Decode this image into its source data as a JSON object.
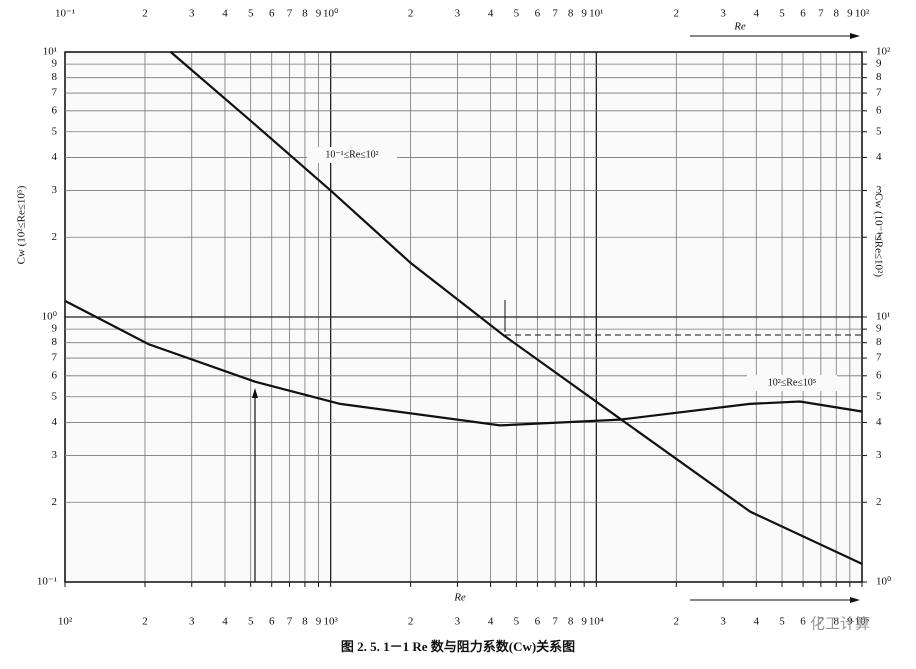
{
  "chart_data": {
    "type": "line",
    "log_x": true,
    "log_y": true,
    "grid": true,
    "xlabel": "Re",
    "x2label": "Re",
    "ylabel": "Cw (10²≤Re≤10⁵)",
    "y2label": "Cw (10⁻¹≤Re≤10²)",
    "caption": "图 2. 5. 1－1   Re 数与阻力系数(Cw)关系图",
    "watermark": "化工计算",
    "xlim": [
      0.1,
      100
    ],
    "xticks": [
      {
        "value": 0.1,
        "label": "10⁻¹"
      },
      {
        "value": 0.2,
        "label": "2"
      },
      {
        "value": 0.3,
        "label": "3"
      },
      {
        "value": 0.4,
        "label": "4"
      },
      {
        "value": 0.5,
        "label": "5"
      },
      {
        "value": 0.6,
        "label": "6"
      },
      {
        "value": 0.7,
        "label": "7"
      },
      {
        "value": 0.8,
        "label": "8"
      },
      {
        "value": 0.9,
        "label": "9"
      },
      {
        "value": 1,
        "label": "10⁰"
      },
      2,
      3,
      4,
      5,
      6,
      7,
      8,
      9,
      {
        "value": 10,
        "label": "10¹"
      },
      {
        "value": 20,
        "label": "2"
      },
      {
        "value": 30,
        "label": "3"
      },
      {
        "value": 40,
        "label": "4"
      },
      {
        "value": 50,
        "label": "5"
      },
      {
        "value": 60,
        "label": "6"
      },
      {
        "value": 70,
        "label": "7"
      },
      {
        "value": 80,
        "label": "8"
      },
      {
        "value": 90,
        "label": "9"
      },
      {
        "value": 100,
        "label": "10²"
      }
    ],
    "x2lim": [
      100,
      100000
    ],
    "x2ticks": [
      {
        "value": 100,
        "label": "10²"
      },
      {
        "value": 200,
        "label": "2"
      },
      {
        "value": 300,
        "label": "3"
      },
      {
        "value": 400,
        "label": "4"
      },
      {
        "value": 500,
        "label": "5"
      },
      {
        "value": 600,
        "label": "6"
      },
      {
        "value": 700,
        "label": "7"
      },
      {
        "value": 800,
        "label": "8"
      },
      {
        "value": 900,
        "label": "9"
      },
      {
        "value": 1000,
        "label": "10³"
      },
      {
        "value": 2000,
        "label": "2"
      },
      {
        "value": 3000,
        "label": "3"
      },
      {
        "value": 4000,
        "label": "4"
      },
      {
        "value": 5000,
        "label": "5"
      },
      {
        "value": 6000,
        "label": "6"
      },
      {
        "value": 7000,
        "label": "7"
      },
      {
        "value": 8000,
        "label": "8"
      },
      {
        "value": 9000,
        "label": "9"
      },
      {
        "value": 10000,
        "label": "10⁴"
      },
      {
        "value": 20000,
        "label": "2"
      },
      {
        "value": 30000,
        "label": "3"
      },
      {
        "value": 40000,
        "label": "4"
      },
      {
        "value": 50000,
        "label": "5"
      },
      {
        "value": 60000,
        "label": "6"
      },
      {
        "value": 70000,
        "label": "7"
      },
      {
        "value": 80000,
        "label": "8"
      },
      {
        "value": 90000,
        "label": "9"
      },
      {
        "value": 100000,
        "label": "10⁵"
      }
    ],
    "ylim": [
      0.1,
      10
    ],
    "yticks": [
      {
        "value": 0.1,
        "label": "10⁻¹"
      },
      {
        "value": 0.2,
        "label": "2"
      },
      {
        "value": 0.3,
        "label": "3"
      },
      {
        "value": 0.4,
        "label": "4"
      },
      {
        "value": 0.5,
        "label": "5"
      },
      {
        "value": 0.6,
        "label": "6"
      },
      {
        "value": 0.7,
        "label": "7"
      },
      {
        "value": 0.8,
        "label": "8"
      },
      {
        "value": 0.9,
        "label": "9"
      },
      {
        "value": 1,
        "label": "10⁰"
      },
      2,
      3,
      4,
      5,
      6,
      7,
      8,
      9,
      {
        "value": 10,
        "label": "10¹"
      }
    ],
    "y2lim": [
      1,
      100
    ],
    "y2ticks": [
      {
        "value": 1,
        "label": "10⁰"
      },
      2,
      3,
      4,
      5,
      6,
      7,
      8,
      9,
      {
        "value": 10,
        "label": "10¹"
      },
      {
        "value": 20,
        "label": "2"
      },
      {
        "value": 30,
        "label": "3"
      },
      {
        "value": 40,
        "label": "4"
      },
      {
        "value": 50,
        "label": "5"
      },
      {
        "value": 60,
        "label": "6"
      },
      {
        "value": 70,
        "label": "7"
      },
      {
        "value": 80,
        "label": "8"
      },
      {
        "value": 90,
        "label": "9"
      },
      {
        "value": 100,
        "label": "10²"
      }
    ],
    "series": [
      {
        "name": "10⁻¹≤Re≤10²",
        "color": "#111111",
        "axis": "y2",
        "x": [
          0.25,
          0.5,
          1,
          2,
          4.5,
          12,
          38,
          100
        ],
        "values": [
          100,
          55,
          30,
          16,
          8.5,
          4.2,
          1.84,
          1.17
        ]
      },
      {
        "name": "10²≤Re≤10⁵",
        "color": "#111111",
        "xaxis": "x2",
        "x": [
          100,
          206,
          519,
          1085,
          4340,
          12300,
          37800,
          58400,
          100000
        ],
        "values": [
          1.15,
          0.79,
          0.57,
          0.47,
          0.39,
          0.41,
          0.47,
          0.48,
          0.44
        ]
      }
    ]
  }
}
